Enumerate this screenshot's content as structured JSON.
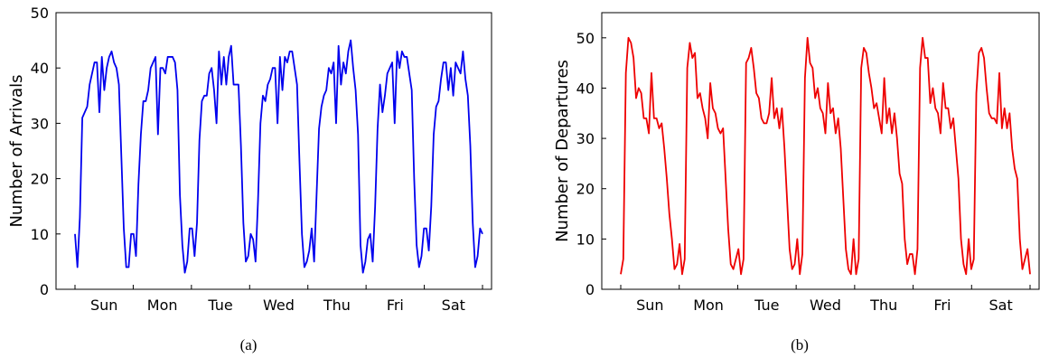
{
  "chart_data": [
    {
      "type": "line",
      "caption": "(a)",
      "ylabel": "Number of Arrivals",
      "xlabel": "",
      "ylim": [
        0,
        50
      ],
      "yticks": [
        0,
        10,
        20,
        30,
        40,
        50
      ],
      "x_day_labels": [
        "Sun",
        "Mon",
        "Tue",
        "Wed",
        "Thu",
        "Fri",
        "Sat"
      ],
      "color": "#0000ee",
      "values": [
        10,
        4,
        13,
        31,
        32,
        33,
        37,
        39,
        41,
        41,
        32,
        42,
        36,
        40,
        42,
        43,
        41,
        40,
        37,
        24,
        11,
        4,
        4,
        10,
        10,
        6,
        19,
        28,
        34,
        34,
        36,
        40,
        41,
        42,
        28,
        40,
        40,
        39,
        42,
        42,
        42,
        41,
        36,
        17,
        8,
        3,
        5,
        11,
        11,
        6,
        12,
        27,
        34,
        35,
        35,
        39,
        40,
        36,
        30,
        43,
        37,
        42,
        37,
        42,
        44,
        37,
        37,
        37,
        26,
        12,
        5,
        6,
        10,
        9,
        5,
        16,
        30,
        35,
        34,
        37,
        38,
        40,
        40,
        30,
        42,
        36,
        42,
        41,
        43,
        43,
        40,
        37,
        23,
        10,
        4,
        5,
        7,
        11,
        5,
        17,
        29,
        33,
        35,
        36,
        40,
        39,
        41,
        30,
        44,
        37,
        41,
        39,
        43,
        45,
        40,
        36,
        28,
        8,
        3,
        5,
        9,
        10,
        5,
        15,
        29,
        37,
        32,
        35,
        39,
        40,
        41,
        30,
        43,
        40,
        43,
        42,
        42,
        39,
        36,
        20,
        8,
        4,
        6,
        11,
        11,
        7,
        15,
        28,
        33,
        34,
        38,
        41,
        41,
        36,
        40,
        35,
        41,
        40,
        39,
        43,
        38,
        35,
        26,
        12,
        4,
        6,
        11,
        10
      ]
    },
    {
      "type": "line",
      "caption": "(b)",
      "ylabel": "Number of Departures",
      "xlabel": "",
      "ylim": [
        0,
        55
      ],
      "yticks": [
        0,
        10,
        20,
        30,
        40,
        50
      ],
      "x_day_labels": [
        "Sun",
        "Mon",
        "Tue",
        "Wed",
        "Thu",
        "Fri",
        "Sat"
      ],
      "color": "#ee0000",
      "values": [
        3,
        6,
        43,
        50,
        49,
        46,
        38,
        40,
        39,
        34,
        34,
        31,
        43,
        34,
        34,
        32,
        33,
        28,
        22,
        15,
        10,
        4,
        5,
        9,
        3,
        6,
        44,
        49,
        46,
        47,
        38,
        39,
        36,
        34,
        30,
        41,
        36,
        35,
        32,
        31,
        32,
        22,
        12,
        5,
        4,
        6,
        8,
        3,
        6,
        45,
        46,
        48,
        44,
        39,
        38,
        34,
        33,
        33,
        35,
        42,
        34,
        36,
        32,
        36,
        28,
        18,
        8,
        4,
        5,
        10,
        3,
        7,
        42,
        50,
        45,
        44,
        38,
        40,
        36,
        35,
        31,
        41,
        35,
        36,
        31,
        34,
        28,
        18,
        8,
        4,
        3,
        10,
        3,
        6,
        44,
        48,
        47,
        43,
        40,
        36,
        37,
        34,
        31,
        42,
        33,
        36,
        31,
        35,
        30,
        23,
        21,
        10,
        5,
        7,
        7,
        3,
        8,
        44,
        50,
        46,
        46,
        37,
        40,
        36,
        35,
        31,
        41,
        36,
        36,
        32,
        34,
        28,
        22,
        10,
        5,
        3,
        10,
        4,
        6,
        39,
        47,
        48,
        46,
        40,
        35,
        34,
        34,
        33,
        43,
        32,
        36,
        32,
        35,
        28,
        24,
        22,
        10,
        4,
        6,
        8,
        3
      ]
    }
  ]
}
